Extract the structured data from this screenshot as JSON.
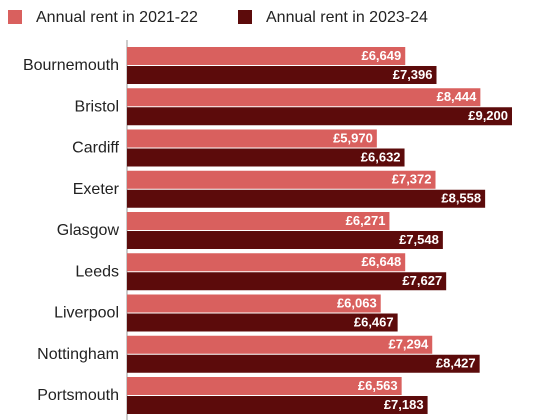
{
  "chart_data": {
    "type": "hbar",
    "categories": [
      "Bournemouth",
      "Bristol",
      "Cardiff",
      "Exeter",
      "Glasgow",
      "Leeds",
      "Liverpool",
      "Nottingham",
      "Portsmouth"
    ],
    "series": [
      {
        "name": "Annual rent in 2021-22",
        "color": "#d9605e",
        "values": [
          6649,
          8444,
          5970,
          7372,
          6271,
          6648,
          6063,
          7294,
          6563
        ],
        "value_labels": [
          "£6,649",
          "£8,444",
          "£5,970",
          "£7,372",
          "£6,271",
          "£6,648",
          "£6,063",
          "£7,294",
          "£6,563"
        ]
      },
      {
        "name": "Annual rent in 2023-24",
        "color": "#5c0b0b",
        "values": [
          7396,
          9200,
          6632,
          8558,
          7548,
          7627,
          6467,
          8427,
          7183
        ],
        "value_labels": [
          "£7,396",
          "£9,200",
          "£6,632",
          "£8,558",
          "£7,548",
          "£7,627",
          "£6,467",
          "£8,427",
          "£7,183"
        ]
      }
    ]
  }
}
